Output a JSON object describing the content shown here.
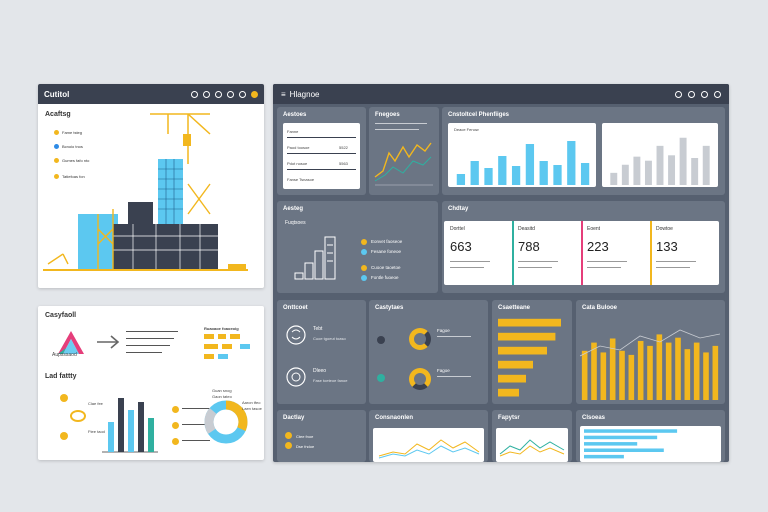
{
  "left_window": {
    "title": "Cutitol",
    "heading": "Acaftsg",
    "bullets": [
      "Fame tsteg",
      "Bcnoio tnos",
      "Gumes fafo nto",
      "Tatiefoas fon"
    ],
    "bullet_colors": [
      "#f2b71e",
      "#2e8be6",
      "#f2b71e",
      "#f2b71e"
    ]
  },
  "bottom_left": {
    "heading": "Casyfaoll",
    "logo_text": "Aupsssaod",
    "list_title": "Ruaoaoe foaoeoig",
    "section": "Lad fattty",
    "annotations": [
      "Clae fee",
      "Ftee taod"
    ],
    "legend": [
      "Guan snog",
      "Gaon tateo",
      "Aaron tfeo",
      "Laen tasoe"
    ]
  },
  "dashboard": {
    "title": "Hlagnoe",
    "cards": {
      "a": {
        "title": "Aestoes",
        "rows": [
          "Fanne",
          "Paod toosoe",
          "Pdot nosoe",
          "Fanse Tsnasoe"
        ],
        "values": [
          "5522",
          "",
          "5563",
          ""
        ]
      },
      "b": {
        "title": "Fnegoes"
      },
      "c": {
        "title": "Cnstoltcel Phenfiiges",
        "subtitle": "Deace Fenow",
        "values": [
          22,
          48,
          34,
          58,
          38,
          82,
          48,
          40,
          88,
          44
        ]
      },
      "d": {
        "values": [
          18,
          30,
          42,
          36,
          58,
          44,
          70,
          40,
          58
        ]
      },
      "e": {
        "title": "Aesteg",
        "subtitle": "Fuqtsoes",
        "legend": [
          "Eonvet faoseoe",
          "Fesane foneoe",
          "Cuooe taoetoe",
          "Fontle fuoeoe"
        ]
      },
      "kpi_title": "Chdtay",
      "kpis": [
        {
          "label": "Dorttel",
          "value": "663",
          "color": "#2fb0a0"
        },
        {
          "label": "Deasitd",
          "value": "788",
          "color": "#e53e7a"
        },
        {
          "label": "Eoent",
          "value": "223",
          "color": "#f2b71e"
        },
        {
          "label": "Dowtoe",
          "value": "133",
          "color": "#2fb0a0"
        }
      ],
      "f": {
        "title": "Onttcoet",
        "items": [
          "Tebt",
          "Dleeo"
        ],
        "lines": [
          "Cuoe tgoeut toaso",
          "Fase toeteoe fanoe"
        ]
      },
      "g": {
        "title": "Castytaes",
        "labels": [
          "Fagoe",
          "Fagoe"
        ]
      },
      "h": {
        "title": "Csaetteane",
        "values": [
          90,
          82,
          70,
          50,
          40,
          30
        ]
      },
      "i": {
        "title": "Cata Bulooe",
        "values": [
          60,
          70,
          58,
          75,
          60,
          55,
          72,
          66,
          80,
          70,
          76,
          62,
          70,
          58,
          66
        ]
      },
      "j": {
        "title": "Dactlay",
        "labels": [
          "Ctee fnoe",
          "Dse fndoe"
        ]
      },
      "k": {
        "title": "Consnaonlen"
      },
      "l": {
        "title": "Fapytsr"
      },
      "m": {
        "title": "Clsoeas",
        "values": [
          70,
          55,
          40,
          60,
          30
        ]
      }
    },
    "colors": {
      "cyan": "#5cc8f0",
      "yellow": "#f2b71e",
      "gray": "#c8ccd2"
    }
  }
}
